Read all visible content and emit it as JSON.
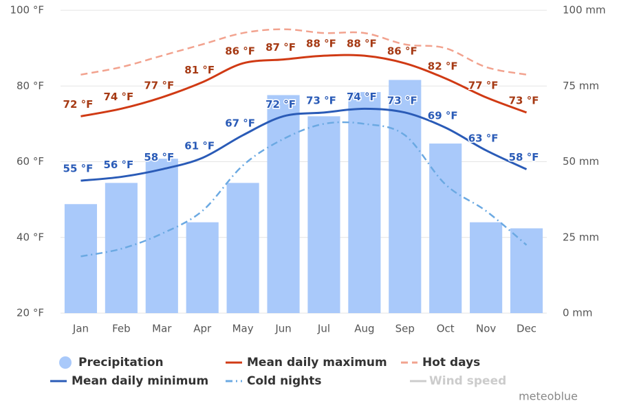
{
  "chart_data": {
    "type": "climate",
    "categories": [
      "Jan",
      "Feb",
      "Mar",
      "Apr",
      "May",
      "Jun",
      "Jul",
      "Aug",
      "Sep",
      "Oct",
      "Nov",
      "Dec"
    ],
    "ylim": [
      20,
      100
    ],
    "yticks": [
      {
        "value": 20,
        "label": "20 °F"
      },
      {
        "value": 40,
        "label": "40 °F"
      },
      {
        "value": 60,
        "label": "60 °F"
      },
      {
        "value": 80,
        "label": "80 °F"
      },
      {
        "value": 100,
        "label": "100 °F"
      }
    ],
    "y2lim": [
      0,
      100
    ],
    "y2ticks": [
      {
        "value": 0,
        "label": "0 mm"
      },
      {
        "value": 25,
        "label": "25 mm"
      },
      {
        "value": 50,
        "label": "50 mm"
      },
      {
        "value": 75,
        "label": "75 mm"
      },
      {
        "value": 100,
        "label": "100 mm"
      }
    ],
    "grid": true,
    "series": [
      {
        "name": "Precipitation",
        "type": "bar",
        "axis": "y2",
        "color": "#a9c9fa",
        "values": [
          36,
          43,
          51,
          30,
          43,
          72,
          65,
          73,
          77,
          56,
          30,
          28
        ]
      },
      {
        "name": "Mean daily maximum",
        "type": "line",
        "color": "#d03a14",
        "label_color": "#a63a14",
        "values": [
          72,
          74,
          77,
          81,
          86,
          87,
          88,
          88,
          86,
          82,
          77,
          73
        ],
        "value_labels": [
          "72 °F",
          "74 °F",
          "77 °F",
          "81 °F",
          "86 °F",
          "87 °F",
          "88 °F",
          "88 °F",
          "86 °F",
          "82 °F",
          "77 °F",
          "73 °F"
        ]
      },
      {
        "name": "Hot days",
        "type": "line",
        "dash": "dashed",
        "color": "#f2a28e",
        "values": [
          83,
          85,
          88,
          91,
          94,
          95,
          94,
          94,
          91,
          90,
          85,
          83
        ]
      },
      {
        "name": "Mean daily minimum",
        "type": "line",
        "color": "#2a5bb7",
        "label_color": "#2a5bb7",
        "values": [
          55,
          56,
          58,
          61,
          67,
          72,
          73,
          74,
          73,
          69,
          63,
          58
        ],
        "value_labels": [
          "55 °F",
          "56 °F",
          "58 °F",
          "61 °F",
          "67 °F",
          "72 °F",
          "73 °F",
          "74 °F",
          "73 °F",
          "69 °F",
          "63 °F",
          "58 °F"
        ]
      },
      {
        "name": "Cold nights",
        "type": "line",
        "dash": "dashdot",
        "color": "#6ba9e2",
        "values": [
          35,
          37,
          41,
          47,
          59,
          66,
          70,
          70,
          67,
          54,
          47,
          38
        ]
      }
    ],
    "hidden_series": [
      {
        "name": "Wind speed",
        "color": "#cccccc"
      }
    ],
    "watermark": "meteoblue"
  }
}
